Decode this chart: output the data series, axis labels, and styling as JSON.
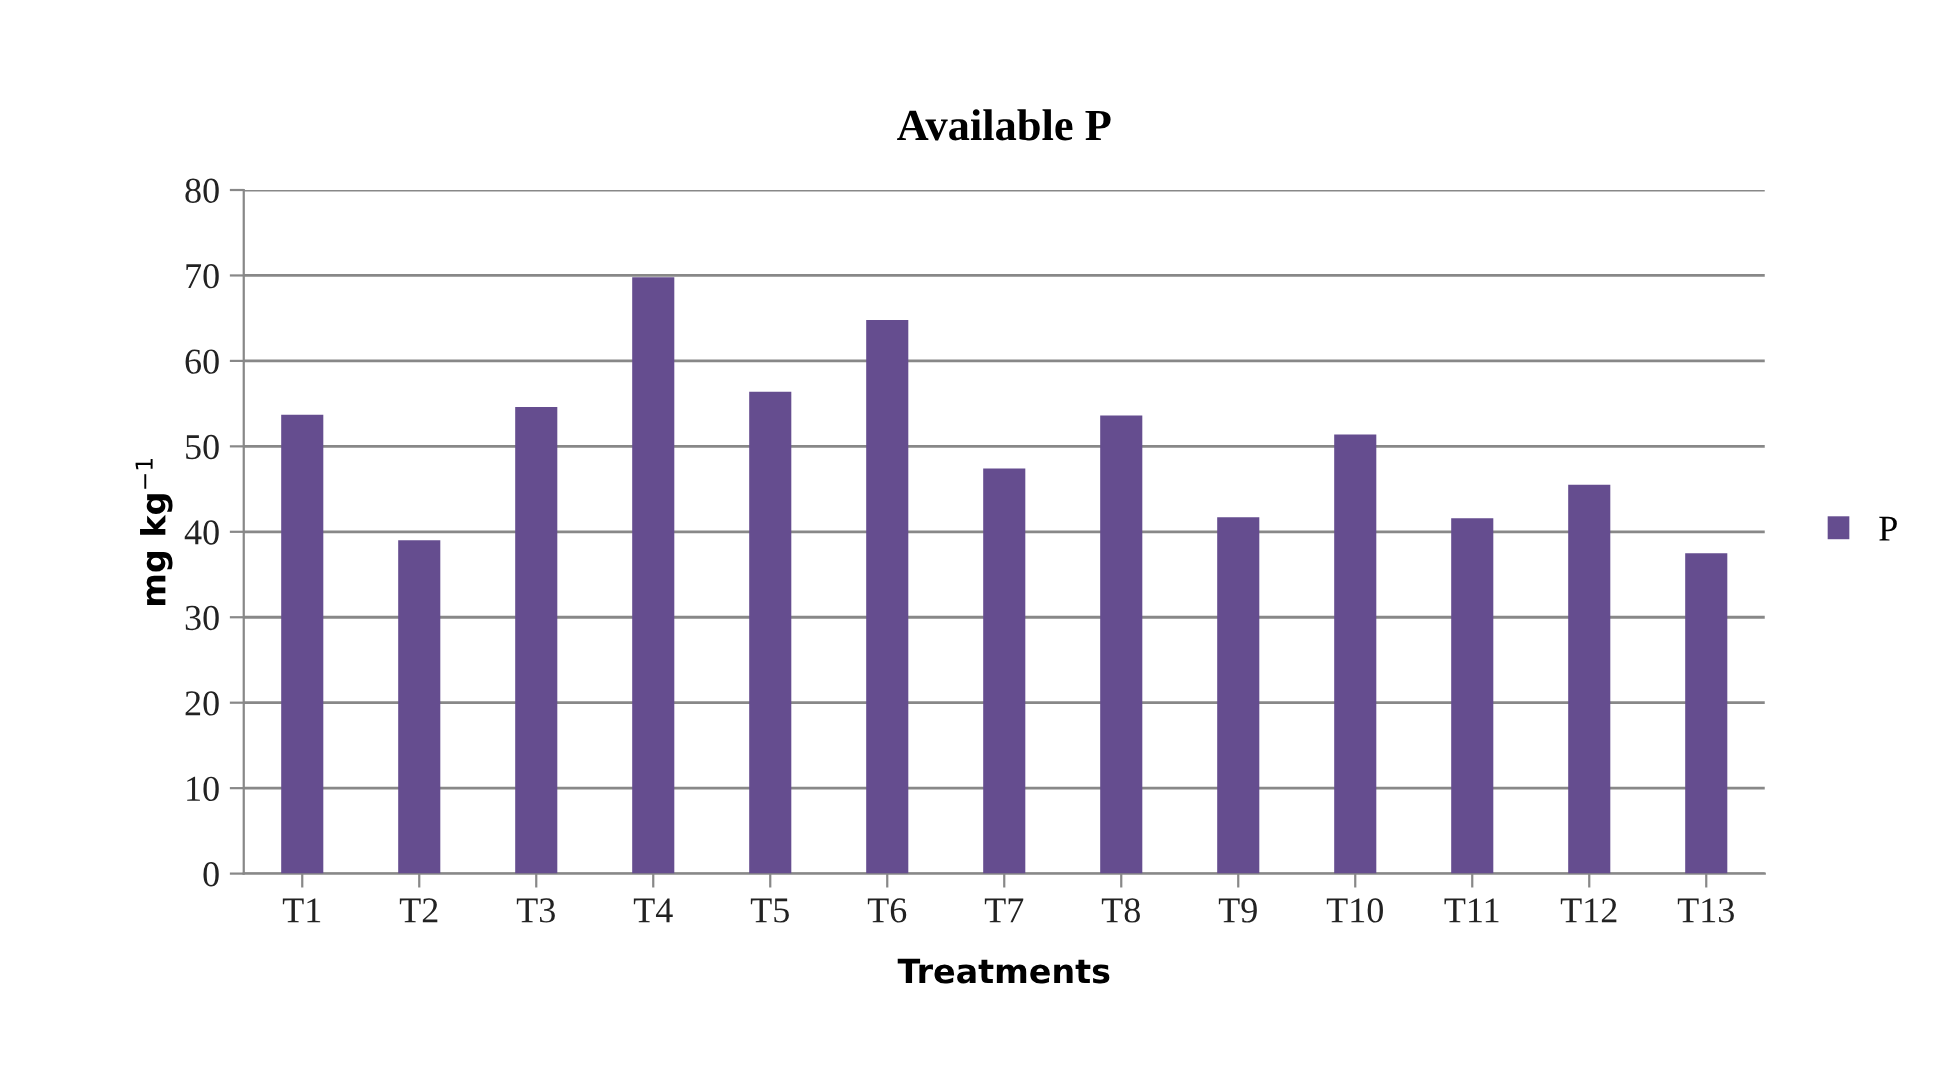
{
  "chart_data": {
    "type": "bar",
    "title": "Available P",
    "xlabel": "Treatments",
    "ylabel": "mg kg$^{−1}$",
    "categories": [
      "T1",
      "T2",
      "T3",
      "T4",
      "T5",
      "T6",
      "T7",
      "T8",
      "T9",
      "T10",
      "T11",
      "T12",
      "T13"
    ],
    "series": [
      {
        "name": "P",
        "color": "#654d8f",
        "values": [
          53.7,
          39.0,
          54.6,
          69.8,
          56.4,
          64.8,
          47.4,
          53.6,
          41.7,
          51.4,
          41.6,
          45.5,
          37.5
        ]
      }
    ],
    "ylim": [
      0,
      80
    ],
    "yticks": [
      0,
      10,
      20,
      30,
      40,
      50,
      60,
      70,
      80
    ],
    "grid": "y",
    "legend": "right"
  }
}
